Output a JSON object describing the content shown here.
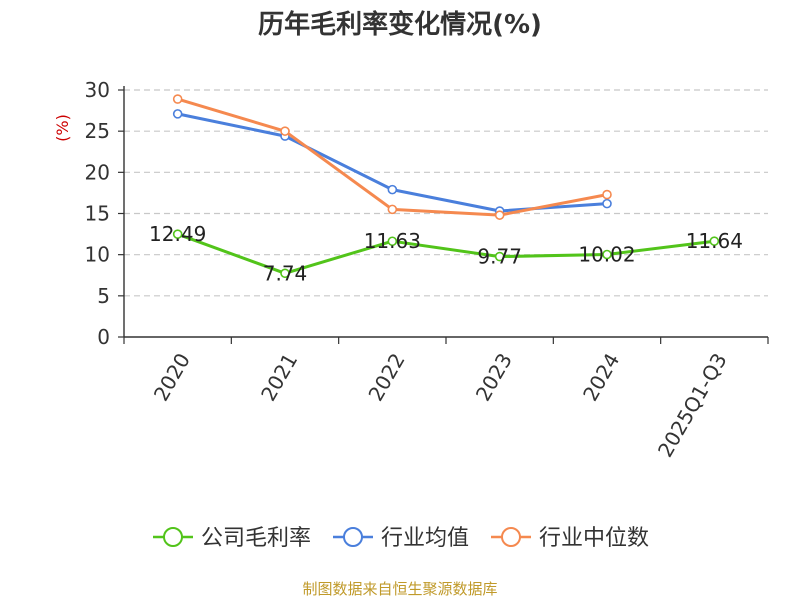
{
  "chart_data": {
    "type": "line",
    "title": "历年毛利率变化情况(%)",
    "ylabel": "(%)",
    "xlabel": "",
    "categories": [
      "2020",
      "2021",
      "2022",
      "2023",
      "2024",
      "2025Q1-Q3"
    ],
    "ylim": [
      0,
      30
    ],
    "yticks": [
      0,
      5,
      10,
      15,
      20,
      25,
      30
    ],
    "grid": true,
    "legend_position": "bottom",
    "series": [
      {
        "name": "公司毛利率",
        "color": "#52c41a",
        "values": [
          12.49,
          7.74,
          11.63,
          9.77,
          10.02,
          11.64
        ],
        "show_labels": true
      },
      {
        "name": "行业均值",
        "color": "#4a7fdc",
        "values": [
          27.1,
          24.4,
          17.9,
          15.3,
          16.2,
          null
        ],
        "show_labels": false
      },
      {
        "name": "行业中位数",
        "color": "#f5894f",
        "values": [
          28.9,
          25.0,
          15.5,
          14.8,
          17.3,
          null
        ],
        "show_labels": false
      }
    ]
  },
  "footer": "制图数据来自恒生聚源数据库"
}
